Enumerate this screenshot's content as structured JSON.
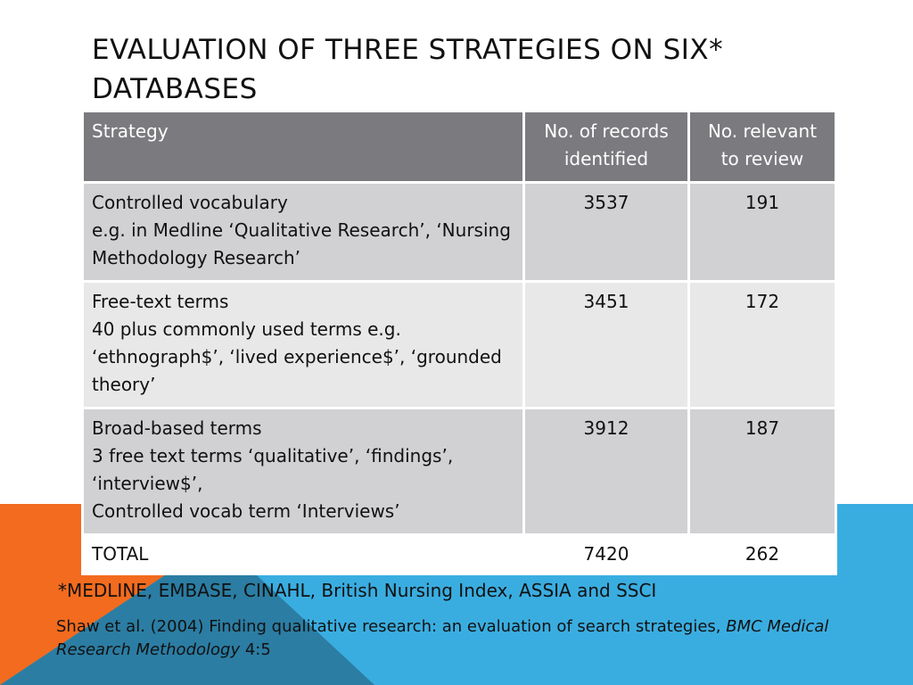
{
  "slide": {
    "title": "EVALUATION OF THREE STRATEGIES ON SIX* DATABASES"
  },
  "colors": {
    "header_bg": "#7b7b7f",
    "row_dark": "#d1d1d4",
    "row_light": "#e8e8e9",
    "accent_orange": "#f26b1e",
    "accent_blue": "#3aade0",
    "accent_teal": "#2b7da3"
  },
  "table": {
    "headers": [
      "Strategy",
      "No. of records identified",
      "No. relevant to review"
    ],
    "rows": [
      {
        "strategy": "Controlled vocabulary",
        "description": " e.g. in Medline ‘Qualitative Research’, ‘Nursing Methodology Research’",
        "records": "3537",
        "relevant": "191"
      },
      {
        "strategy": "Free-text terms",
        "description": "40 plus commonly used terms e.g. ‘ethnograph$’, ‘lived experience$’, ‘grounded theory’",
        "records": "3451",
        "relevant": "172"
      },
      {
        "strategy": "Broad-based terms",
        "description": " 3 free text terms ‘qualitative’, ‘findings’, ‘interview$’,",
        "description_2": "Controlled vocab term ‘Interviews’",
        "records": "3912",
        "relevant": "187"
      },
      {
        "strategy": "TOTAL",
        "records": "7420",
        "relevant": "262"
      }
    ]
  },
  "footnote": "*MEDLINE, EMBASE, CINAHL, British Nursing Index, ASSIA and SSCI",
  "citation": {
    "text": "Shaw et al. (2004) Finding qualitative research: an evaluation of search strategies, ",
    "journal": "BMC Medical Research Methodology",
    "volume": " 4:5"
  }
}
